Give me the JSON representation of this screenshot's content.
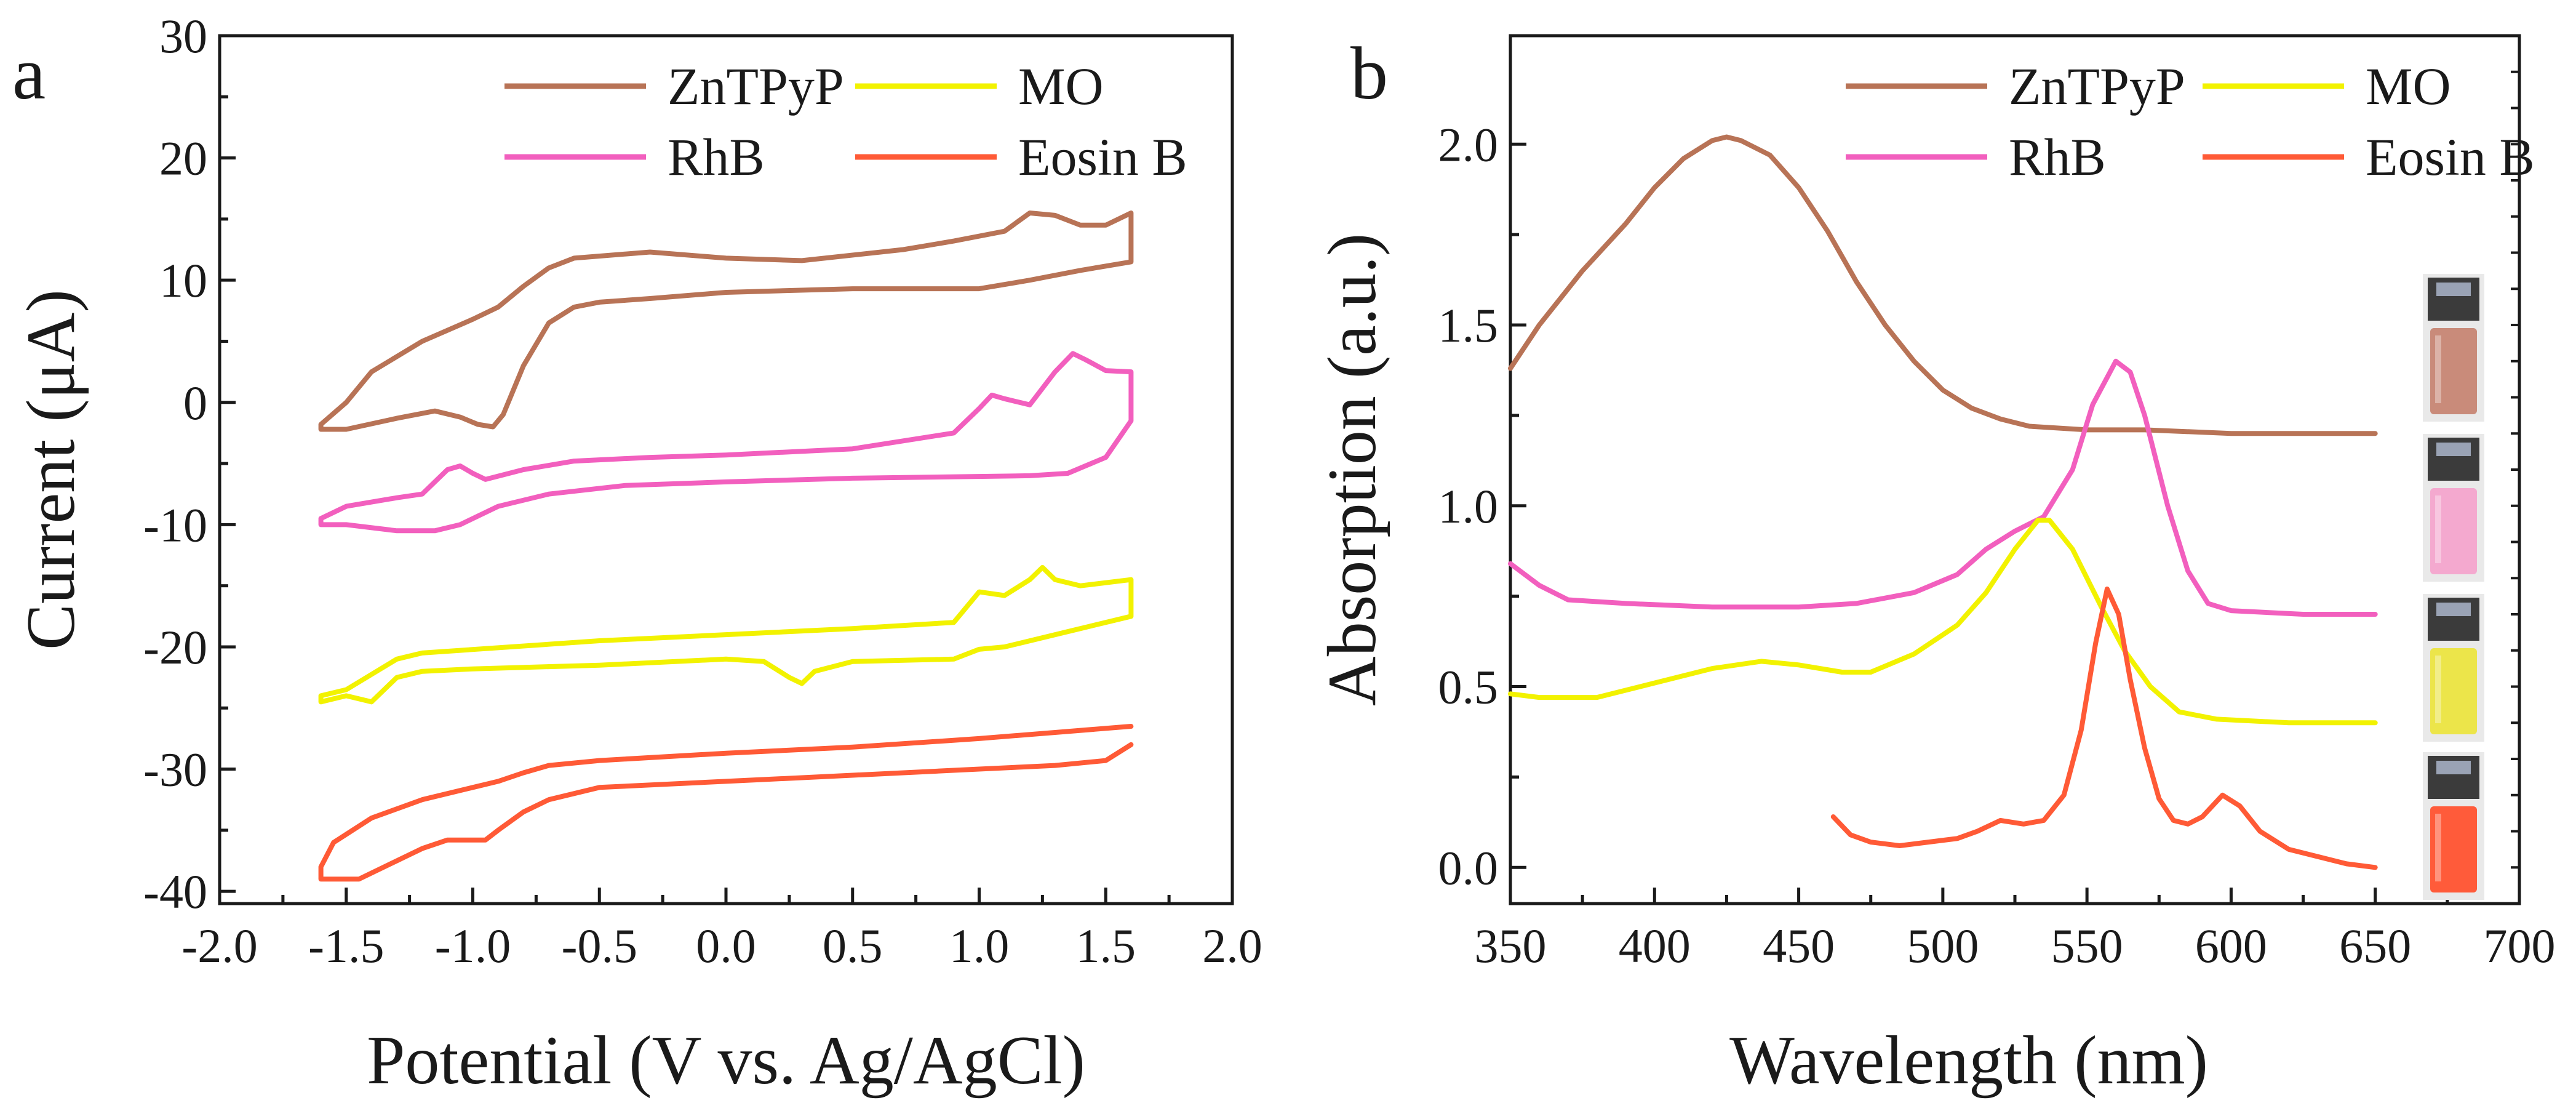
{
  "chart_data": [
    {
      "panel_label": "a",
      "type": "line",
      "title": "",
      "xlabel": "Potential (V vs. Ag/AgCl)",
      "ylabel": "Current (μA)",
      "xlim": [
        -2.0,
        2.0
      ],
      "ylim": [
        -41,
        30
      ],
      "x_ticks": [
        "-2.0",
        "-1.5",
        "-1.0",
        "-0.5",
        "0.0",
        "0.5",
        "1.0",
        "1.5",
        "2.0"
      ],
      "y_ticks": [
        "-40",
        "-30",
        "-20",
        "-10",
        "0",
        "10",
        "20",
        "30"
      ],
      "legend": [
        "ZnTPyP",
        "MO",
        "RhB",
        "Eosin B"
      ],
      "series": [
        {
          "name": "ZnTPyP",
          "color": "#B87356",
          "points": [
            [
              1.6,
              15.5
            ],
            [
              1.6,
              11.5
            ],
            [
              1.4,
              10.8
            ],
            [
              1.2,
              10.0
            ],
            [
              1.0,
              9.3
            ],
            [
              0.5,
              9.3
            ],
            [
              0.0,
              9.0
            ],
            [
              -0.3,
              8.5
            ],
            [
              -0.5,
              8.2
            ],
            [
              -0.6,
              7.8
            ],
            [
              -0.7,
              6.5
            ],
            [
              -0.8,
              3.0
            ],
            [
              -0.88,
              -1.0
            ],
            [
              -0.92,
              -2.0
            ],
            [
              -0.98,
              -1.8
            ],
            [
              -1.05,
              -1.2
            ],
            [
              -1.15,
              -0.7
            ],
            [
              -1.3,
              -1.3
            ],
            [
              -1.5,
              -2.2
            ],
            [
              -1.6,
              -2.2
            ],
            [
              -1.6,
              -1.8
            ],
            [
              -1.5,
              0.0
            ],
            [
              -1.4,
              2.5
            ],
            [
              -1.2,
              5.0
            ],
            [
              -1.0,
              6.8
            ],
            [
              -0.9,
              7.8
            ],
            [
              -0.8,
              9.5
            ],
            [
              -0.7,
              11.0
            ],
            [
              -0.6,
              11.8
            ],
            [
              -0.3,
              12.3
            ],
            [
              0.0,
              11.8
            ],
            [
              0.3,
              11.6
            ],
            [
              0.7,
              12.5
            ],
            [
              0.9,
              13.2
            ],
            [
              1.1,
              14.0
            ],
            [
              1.2,
              15.5
            ],
            [
              1.3,
              15.3
            ],
            [
              1.4,
              14.5
            ],
            [
              1.5,
              14.5
            ],
            [
              1.6,
              15.5
            ]
          ]
        },
        {
          "name": "RhB",
          "color": "#F25FBE",
          "points": [
            [
              1.6,
              2.5
            ],
            [
              1.6,
              -1.5
            ],
            [
              1.5,
              -4.5
            ],
            [
              1.35,
              -5.8
            ],
            [
              1.2,
              -6.0
            ],
            [
              0.5,
              -6.2
            ],
            [
              0.0,
              -6.5
            ],
            [
              -0.4,
              -6.8
            ],
            [
              -0.7,
              -7.5
            ],
            [
              -0.9,
              -8.5
            ],
            [
              -1.05,
              -10.0
            ],
            [
              -1.15,
              -10.5
            ],
            [
              -1.3,
              -10.5
            ],
            [
              -1.5,
              -10.0
            ],
            [
              -1.6,
              -10.0
            ],
            [
              -1.6,
              -9.5
            ],
            [
              -1.5,
              -8.5
            ],
            [
              -1.3,
              -7.8
            ],
            [
              -1.2,
              -7.5
            ],
            [
              -1.1,
              -5.5
            ],
            [
              -1.05,
              -5.2
            ],
            [
              -1.0,
              -5.8
            ],
            [
              -0.95,
              -6.3
            ],
            [
              -0.8,
              -5.5
            ],
            [
              -0.6,
              -4.8
            ],
            [
              -0.3,
              -4.5
            ],
            [
              0.0,
              -4.3
            ],
            [
              0.5,
              -3.8
            ],
            [
              0.9,
              -2.5
            ],
            [
              1.0,
              -0.5
            ],
            [
              1.05,
              0.6
            ],
            [
              1.1,
              0.3
            ],
            [
              1.2,
              -0.2
            ],
            [
              1.3,
              2.5
            ],
            [
              1.37,
              4.0
            ],
            [
              1.42,
              3.5
            ],
            [
              1.5,
              2.6
            ],
            [
              1.6,
              2.5
            ]
          ]
        },
        {
          "name": "MO",
          "color": "#F2F200",
          "points": [
            [
              1.6,
              -14.5
            ],
            [
              1.6,
              -17.5
            ],
            [
              1.4,
              -18.5
            ],
            [
              1.1,
              -20.0
            ],
            [
              1.0,
              -20.2
            ],
            [
              0.9,
              -21.0
            ],
            [
              0.5,
              -21.2
            ],
            [
              0.35,
              -22.0
            ],
            [
              0.3,
              -23.0
            ],
            [
              0.25,
              -22.5
            ],
            [
              0.15,
              -21.2
            ],
            [
              0.0,
              -21.0
            ],
            [
              -0.5,
              -21.5
            ],
            [
              -1.0,
              -21.8
            ],
            [
              -1.2,
              -22.0
            ],
            [
              -1.3,
              -22.5
            ],
            [
              -1.4,
              -24.5
            ],
            [
              -1.5,
              -24.0
            ],
            [
              -1.6,
              -24.5
            ],
            [
              -1.6,
              -24.0
            ],
            [
              -1.5,
              -23.5
            ],
            [
              -1.3,
              -21.0
            ],
            [
              -1.2,
              -20.5
            ],
            [
              -0.5,
              -19.5
            ],
            [
              0.0,
              -19.0
            ],
            [
              0.5,
              -18.5
            ],
            [
              0.9,
              -18.0
            ],
            [
              1.0,
              -15.5
            ],
            [
              1.1,
              -15.8
            ],
            [
              1.2,
              -14.5
            ],
            [
              1.25,
              -13.5
            ],
            [
              1.3,
              -14.5
            ],
            [
              1.4,
              -15.0
            ],
            [
              1.6,
              -14.5
            ]
          ]
        },
        {
          "name": "Eosin B",
          "color": "#FF5A36",
          "points": [
            [
              1.6,
              -26.5
            ],
            [
              1.3,
              -27.0
            ],
            [
              1.0,
              -27.5
            ],
            [
              0.5,
              -28.2
            ],
            [
              0.0,
              -28.7
            ],
            [
              -0.5,
              -29.3
            ],
            [
              -0.7,
              -29.7
            ],
            [
              -0.8,
              -30.3
            ],
            [
              -0.9,
              -31.0
            ],
            [
              -1.0,
              -31.5
            ],
            [
              -1.2,
              -32.5
            ],
            [
              -1.4,
              -34.0
            ],
            [
              -1.55,
              -36.0
            ],
            [
              -1.6,
              -38.0
            ],
            [
              -1.6,
              -39.0
            ],
            [
              -1.45,
              -39.0
            ],
            [
              -1.3,
              -37.5
            ],
            [
              -1.2,
              -36.5
            ],
            [
              -1.1,
              -35.8
            ],
            [
              -0.95,
              -35.8
            ],
            [
              -0.9,
              -35.0
            ],
            [
              -0.8,
              -33.5
            ],
            [
              -0.7,
              -32.5
            ],
            [
              -0.5,
              -31.5
            ],
            [
              0.0,
              -31.0
            ],
            [
              0.5,
              -30.5
            ],
            [
              1.0,
              -30.0
            ],
            [
              1.3,
              -29.7
            ],
            [
              1.5,
              -29.3
            ],
            [
              1.6,
              -28.0
            ]
          ]
        }
      ]
    },
    {
      "panel_label": "b",
      "type": "line",
      "title": "",
      "xlabel": "Wavelength (nm)",
      "ylabel": "Absorption (a.u.)",
      "xlim": [
        350,
        700
      ],
      "ylim": [
        -0.1,
        2.3
      ],
      "x_ticks": [
        "350",
        "400",
        "450",
        "500",
        "550",
        "600",
        "650",
        "700"
      ],
      "y_ticks": [
        "0.0",
        "0.5",
        "1.0",
        "1.5",
        "2.0"
      ],
      "legend": [
        "ZnTPyP",
        "MO",
        "RhB",
        "Eosin B"
      ],
      "inset_images": [
        "ZnTPyP solution vial",
        "RhB solution vial",
        "MO solution vial",
        "Eosin B solution vial"
      ],
      "series": [
        {
          "name": "ZnTPyP",
          "color": "#B87356",
          "points": [
            [
              350,
              1.38
            ],
            [
              360,
              1.5
            ],
            [
              375,
              1.65
            ],
            [
              390,
              1.78
            ],
            [
              400,
              1.88
            ],
            [
              410,
              1.96
            ],
            [
              420,
              2.01
            ],
            [
              425,
              2.02
            ],
            [
              430,
              2.01
            ],
            [
              440,
              1.97
            ],
            [
              450,
              1.88
            ],
            [
              460,
              1.76
            ],
            [
              470,
              1.62
            ],
            [
              480,
              1.5
            ],
            [
              490,
              1.4
            ],
            [
              500,
              1.32
            ],
            [
              510,
              1.27
            ],
            [
              520,
              1.24
            ],
            [
              530,
              1.22
            ],
            [
              550,
              1.21
            ],
            [
              570,
              1.21
            ],
            [
              600,
              1.2
            ],
            [
              650,
              1.2
            ]
          ]
        },
        {
          "name": "RhB",
          "color": "#F25FBE",
          "points": [
            [
              350,
              0.84
            ],
            [
              360,
              0.78
            ],
            [
              370,
              0.74
            ],
            [
              390,
              0.73
            ],
            [
              420,
              0.72
            ],
            [
              450,
              0.72
            ],
            [
              470,
              0.73
            ],
            [
              490,
              0.76
            ],
            [
              505,
              0.81
            ],
            [
              515,
              0.88
            ],
            [
              525,
              0.93
            ],
            [
              535,
              0.97
            ],
            [
              545,
              1.1
            ],
            [
              552,
              1.28
            ],
            [
              560,
              1.4
            ],
            [
              565,
              1.37
            ],
            [
              570,
              1.25
            ],
            [
              578,
              1.0
            ],
            [
              585,
              0.82
            ],
            [
              592,
              0.73
            ],
            [
              600,
              0.71
            ],
            [
              625,
              0.7
            ],
            [
              650,
              0.7
            ]
          ]
        },
        {
          "name": "MO",
          "color": "#F2F200",
          "points": [
            [
              350,
              0.48
            ],
            [
              360,
              0.47
            ],
            [
              380,
              0.47
            ],
            [
              400,
              0.51
            ],
            [
              420,
              0.55
            ],
            [
              437,
              0.57
            ],
            [
              450,
              0.56
            ],
            [
              465,
              0.54
            ],
            [
              475,
              0.54
            ],
            [
              490,
              0.59
            ],
            [
              505,
              0.67
            ],
            [
              515,
              0.76
            ],
            [
              525,
              0.88
            ],
            [
              533,
              0.96
            ],
            [
              537,
              0.96
            ],
            [
              545,
              0.88
            ],
            [
              555,
              0.72
            ],
            [
              563,
              0.6
            ],
            [
              572,
              0.5
            ],
            [
              582,
              0.43
            ],
            [
              595,
              0.41
            ],
            [
              620,
              0.4
            ],
            [
              650,
              0.4
            ]
          ]
        },
        {
          "name": "Eosin B",
          "color": "#FF5A36",
          "points": [
            [
              462,
              0.14
            ],
            [
              468,
              0.09
            ],
            [
              475,
              0.07
            ],
            [
              485,
              0.06
            ],
            [
              495,
              0.07
            ],
            [
              505,
              0.08
            ],
            [
              512,
              0.1
            ],
            [
              520,
              0.13
            ],
            [
              528,
              0.12
            ],
            [
              535,
              0.13
            ],
            [
              542,
              0.2
            ],
            [
              548,
              0.38
            ],
            [
              553,
              0.62
            ],
            [
              557,
              0.77
            ],
            [
              561,
              0.7
            ],
            [
              565,
              0.52
            ],
            [
              570,
              0.33
            ],
            [
              575,
              0.19
            ],
            [
              580,
              0.13
            ],
            [
              585,
              0.12
            ],
            [
              590,
              0.14
            ],
            [
              597,
              0.2
            ],
            [
              603,
              0.17
            ],
            [
              610,
              0.1
            ],
            [
              620,
              0.05
            ],
            [
              630,
              0.03
            ],
            [
              640,
              0.01
            ],
            [
              650,
              0.0
            ]
          ]
        }
      ]
    }
  ]
}
